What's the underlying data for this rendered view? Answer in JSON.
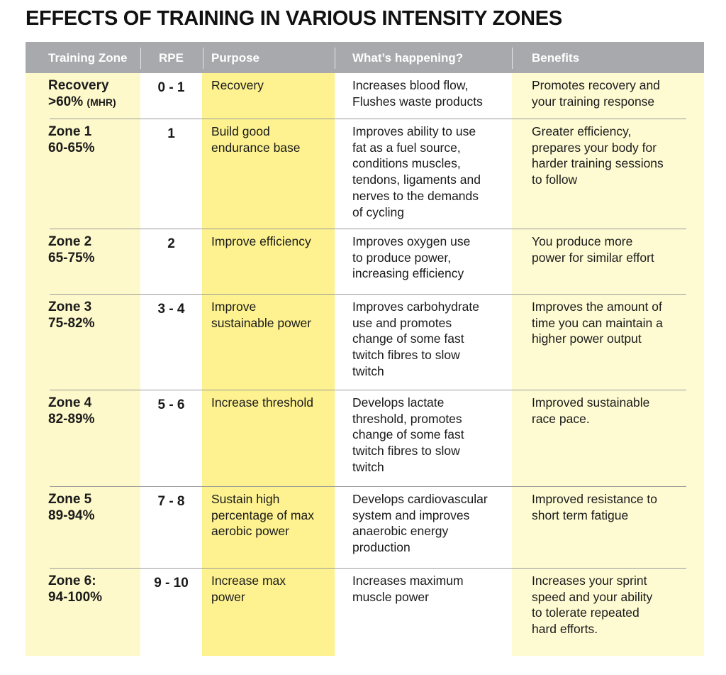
{
  "title": "EFFECTS OF TRAINING IN VARIOUS INTENSITY ZONES",
  "colors": {
    "header": "#a7a9ac",
    "zone_column": "#fef9cb",
    "purpose_column": "#fdf28f",
    "benefits_column": "#fefbd3"
  },
  "headers": [
    "Training Zone",
    "RPE",
    "Purpose",
    "What’s happening?",
    "Benefits"
  ],
  "rows": [
    {
      "zone": "Recovery",
      "range": ">60%",
      "unit": "(MHR)",
      "rpe": "0 - 1",
      "purpose": "Recovery",
      "what": "Increases blood flow,\nFlushes waste products",
      "benefits": "Promotes recovery and\nyour training response"
    },
    {
      "zone": "Zone 1",
      "range": "60-65%",
      "rpe": "1",
      "purpose": "Build good\nendurance base",
      "what": "Improves ability to use\nfat as a fuel source,\nconditions muscles,\ntendons, ligaments and\nnerves to the demands\nof cycling",
      "benefits": "Greater efficiency,\nprepares your body for\nharder training sessions\nto follow"
    },
    {
      "zone": "Zone 2",
      "range": "65-75%",
      "rpe": "2",
      "purpose": "Improve efficiency",
      "what": "Improves oxygen use\nto produce power,\nincreasing efficiency",
      "benefits": "You produce more\npower for similar effort"
    },
    {
      "zone": "Zone 3",
      "range": "75-82%",
      "rpe": "3  - 4",
      "purpose": "Improve\nsustainable power",
      "what": "Improves carbohydrate\nuse and promotes\nchange of some fast\ntwitch fibres to slow\ntwitch",
      "benefits": "Improves the amount of\ntime you can maintain a\nhigher power output"
    },
    {
      "zone": "Zone 4",
      "range": "82-89%",
      "rpe": "5 - 6",
      "purpose": "Increase threshold",
      "what": "Develops lactate\nthreshold, promotes\nchange of some fast\ntwitch fibres to slow\ntwitch",
      "benefits": "Improved sustainable\nrace pace."
    },
    {
      "zone": "Zone 5",
      "range": "89-94%",
      "rpe": "7 - 8",
      "purpose": "Sustain high\npercentage of max\naerobic power",
      "what": "Develops cardiovascular\nsystem and improves\nanaerobic energy\nproduction",
      "benefits": "Improved resistance to\nshort term fatigue"
    },
    {
      "zone": "Zone 6:",
      "range": "94-100%",
      "rpe": "9 - 10",
      "purpose": "Increase max\npower",
      "what": "Increases maximum\nmuscle power",
      "benefits": "Increases your sprint\nspeed and your ability\nto tolerate repeated\nhard efforts."
    }
  ]
}
